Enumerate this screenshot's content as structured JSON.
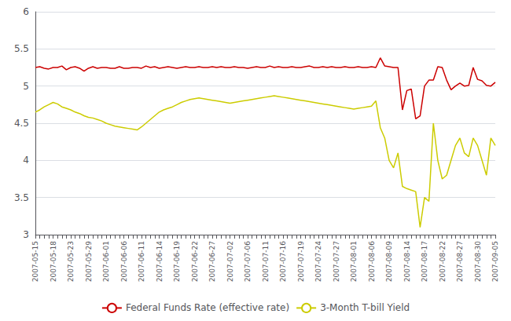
{
  "chart_data": {
    "type": "line",
    "categories": [
      "2007-05-15",
      null,
      null,
      null,
      "2007-05-18",
      null,
      null,
      null,
      "2007-05-23",
      null,
      null,
      null,
      "2007-05-29",
      null,
      null,
      null,
      "2007-06-01",
      null,
      null,
      null,
      "2007-06-06",
      null,
      null,
      null,
      "2007-06-11",
      null,
      null,
      null,
      "2007-06-14",
      null,
      null,
      null,
      "2007-06-19",
      null,
      null,
      null,
      "2007-06-22",
      null,
      null,
      null,
      "2007-06-27",
      null,
      null,
      null,
      "2007-07-02",
      null,
      null,
      null,
      "2007-07-06",
      null,
      null,
      null,
      "2007-07-11",
      null,
      null,
      null,
      "2007-07-16",
      null,
      null,
      null,
      "2007-07-19",
      null,
      null,
      null,
      "2007-07-24",
      null,
      null,
      null,
      "2007-07-27",
      null,
      null,
      null,
      "2007-08-01",
      null,
      null,
      null,
      "2007-08-06",
      null,
      null,
      null,
      "2007-08-09",
      null,
      null,
      null,
      "2007-08-14",
      null,
      null,
      null,
      "2007-08-17",
      null,
      null,
      null,
      "2007-08-22",
      null,
      null,
      null,
      "2007-08-27",
      null,
      null,
      null,
      "2007-08-30",
      null,
      null,
      null,
      "2007-09-05"
    ],
    "series": [
      {
        "name": "Federal Funds Rate (effective rate)",
        "color": "#cc0000",
        "values": [
          5.25,
          5.26,
          5.24,
          5.23,
          5.25,
          5.25,
          5.27,
          5.22,
          5.25,
          5.26,
          5.24,
          5.2,
          5.24,
          5.26,
          5.24,
          5.25,
          5.25,
          5.24,
          5.24,
          5.26,
          5.24,
          5.24,
          5.25,
          5.25,
          5.24,
          5.27,
          5.25,
          5.26,
          5.24,
          5.25,
          5.26,
          5.25,
          5.24,
          5.25,
          5.26,
          5.25,
          5.25,
          5.26,
          5.25,
          5.25,
          5.26,
          5.25,
          5.26,
          5.25,
          5.25,
          5.26,
          5.25,
          5.25,
          5.24,
          5.25,
          5.26,
          5.25,
          5.25,
          5.27,
          5.25,
          5.26,
          5.25,
          5.25,
          5.26,
          5.25,
          5.25,
          5.26,
          5.27,
          5.25,
          5.25,
          5.26,
          5.25,
          5.26,
          5.25,
          5.25,
          5.26,
          5.25,
          5.25,
          5.26,
          5.25,
          5.25,
          5.26,
          5.25,
          5.38,
          5.27,
          5.26,
          5.25,
          5.25,
          4.68,
          4.94,
          4.96,
          4.56,
          4.6,
          5.0,
          5.08,
          5.08,
          5.26,
          5.25,
          5.08,
          4.95,
          5.0,
          5.04,
          5.0,
          5.01,
          5.25,
          5.09,
          5.07,
          5.01,
          5.0,
          5.05
        ]
      },
      {
        "name": "3-Month T-bill Yield",
        "color": "#cccc00",
        "values": [
          4.65,
          4.68,
          4.72,
          4.75,
          4.78,
          4.76,
          4.72,
          4.7,
          4.68,
          4.65,
          4.63,
          4.6,
          4.58,
          4.57,
          4.55,
          4.53,
          4.5,
          4.48,
          4.46,
          4.45,
          4.44,
          4.43,
          4.42,
          4.41,
          4.45,
          4.5,
          4.55,
          4.6,
          4.65,
          4.68,
          4.7,
          4.72,
          4.75,
          4.78,
          4.8,
          4.82,
          4.83,
          4.84,
          4.83,
          4.82,
          4.81,
          4.8,
          4.79,
          4.78,
          4.77,
          4.78,
          4.79,
          4.8,
          4.81,
          4.82,
          4.83,
          4.84,
          4.85,
          4.86,
          4.87,
          4.86,
          4.85,
          4.84,
          4.83,
          4.82,
          4.81,
          4.8,
          4.79,
          4.78,
          4.77,
          4.76,
          4.75,
          4.74,
          4.73,
          4.72,
          4.71,
          4.7,
          4.69,
          4.7,
          4.71,
          4.72,
          4.73,
          4.8,
          4.44,
          4.3,
          4.0,
          3.9,
          4.1,
          3.65,
          3.62,
          3.6,
          3.58,
          3.1,
          3.5,
          3.45,
          4.5,
          4.0,
          3.75,
          3.8,
          4.0,
          4.2,
          4.3,
          4.1,
          4.05,
          4.3,
          4.2,
          4.0,
          3.8,
          4.3,
          4.2
        ]
      }
    ],
    "ylim": [
      3,
      6
    ],
    "yticks": [
      3,
      3.5,
      4,
      4.5,
      5,
      5.5,
      6
    ],
    "grid": true,
    "legend": "bottom"
  }
}
